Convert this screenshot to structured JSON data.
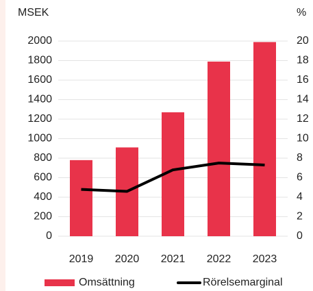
{
  "chart_data": {
    "type": "bar",
    "categories": [
      "2019",
      "2020",
      "2021",
      "2022",
      "2023"
    ],
    "y_label": "MSEK",
    "y2_label": "%",
    "series": [
      {
        "name": "Omsättning",
        "type": "bar",
        "color": "#e8334a",
        "values": [
          780,
          910,
          1270,
          1790,
          1990
        ]
      },
      {
        "name": "Rörelsemarginal",
        "type": "line",
        "axis": "y2",
        "color": "#000000",
        "values": [
          4.8,
          4.6,
          6.8,
          7.5,
          7.3
        ]
      }
    ],
    "ylim": [
      0,
      2000
    ],
    "yticks": [
      0,
      200,
      400,
      600,
      800,
      1000,
      1200,
      1400,
      1600,
      1800,
      2000
    ],
    "y2lim": [
      0,
      20
    ],
    "y2ticks": [
      0,
      2,
      4,
      6,
      8,
      10,
      12,
      14,
      16,
      18,
      20
    ],
    "grid": true,
    "legend": "bottom"
  }
}
